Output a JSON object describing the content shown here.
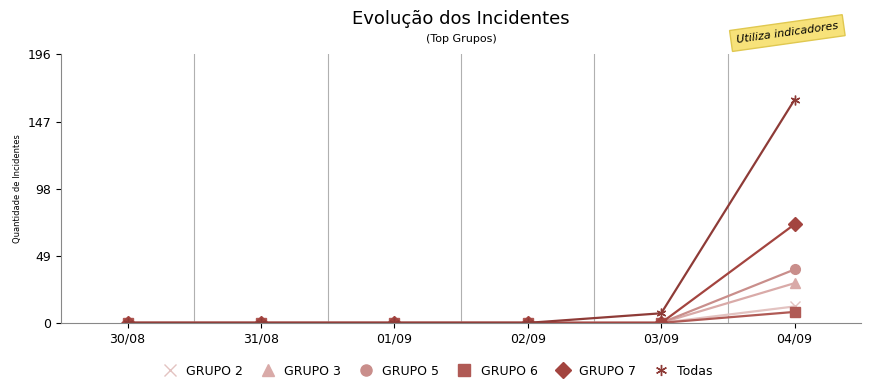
{
  "chart_data": {
    "type": "line",
    "title": "Evolução dos Incidentes",
    "subtitle": "(Top Grupos)",
    "y_label": "Quantidade de Incidentes",
    "note": "Utiliza indicadores",
    "categories": [
      "30/08",
      "31/08",
      "01/09",
      "02/09",
      "03/09",
      "04/09"
    ],
    "series": [
      {
        "name": "GRUPO 2",
        "color": "#e3c3c1",
        "marker": "x",
        "values": [
          0,
          0,
          0,
          0,
          0,
          12
        ]
      },
      {
        "name": "GRUPO 3",
        "color": "#d9aaa8",
        "marker": "triangle",
        "values": [
          0,
          0,
          0,
          0,
          0,
          29
        ]
      },
      {
        "name": "GRUPO 5",
        "color": "#c98e8b",
        "marker": "circle",
        "values": [
          0,
          0,
          0,
          0,
          0,
          39
        ]
      },
      {
        "name": "GRUPO 6",
        "color": "#b05a55",
        "marker": "square",
        "values": [
          0,
          0,
          0,
          0,
          0,
          8
        ]
      },
      {
        "name": "GRUPO 7",
        "color": "#a3443f",
        "marker": "diamond",
        "values": [
          0,
          0,
          0,
          0,
          0,
          72
        ]
      },
      {
        "name": "Todas",
        "color": "#8e3b37",
        "marker": "asterisk",
        "values": [
          0,
          0,
          0,
          0,
          7,
          163
        ]
      }
    ],
    "ylim": [
      0,
      196
    ],
    "yticks": [
      0,
      49,
      98,
      147,
      196
    ],
    "grid": "x",
    "legend": "bottom"
  }
}
